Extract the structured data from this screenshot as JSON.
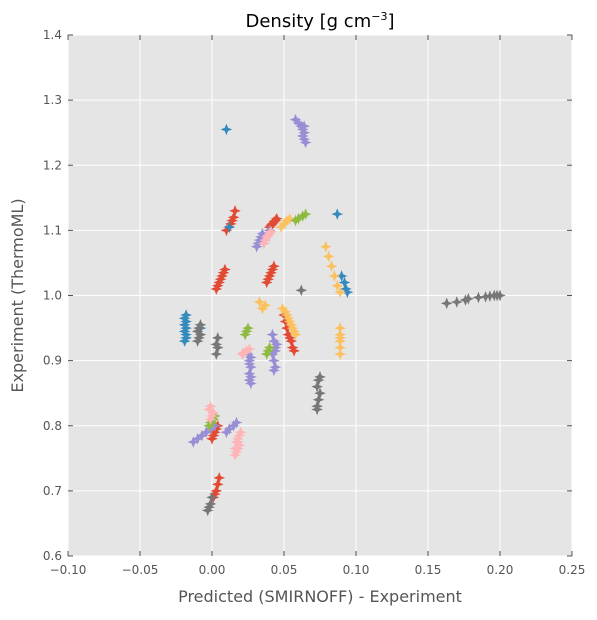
{
  "chart_data": {
    "type": "scatter",
    "title": "Density [g cm",
    "title_superscript": "−3",
    "title_suffix": "]",
    "xlabel": "Predicted (SMIRNOFF) - Experiment",
    "ylabel": "Experiment (ThermoML)",
    "xlim": [
      -0.1,
      0.25
    ],
    "ylim": [
      0.6,
      1.4
    ],
    "x_ticks": [
      -0.1,
      -0.05,
      0.0,
      0.05,
      0.1,
      0.15,
      0.2,
      0.25
    ],
    "x_tick_labels": [
      "−0.10",
      "−0.05",
      "0.00",
      "0.05",
      "0.10",
      "0.15",
      "0.20",
      "0.25"
    ],
    "y_ticks": [
      0.6,
      0.7,
      0.8,
      0.9,
      1.0,
      1.1,
      1.2,
      1.3,
      1.4
    ],
    "y_tick_labels": [
      "0.6",
      "0.7",
      "0.8",
      "0.9",
      "1.0",
      "1.1",
      "1.2",
      "1.3",
      "1.4"
    ],
    "grid": true,
    "marker": "4-point star",
    "colors": {
      "background": "#e5e5e5",
      "grid": "#ffffff",
      "red": "#e24a33",
      "blue": "#348abd",
      "purple": "#988ed5",
      "gray": "#777777",
      "yellow": "#fbc15e",
      "green": "#8eba42",
      "pink": "#ffb5b8"
    },
    "series": [
      {
        "color": "red",
        "x": [
          0.003,
          0.004,
          0.005,
          0.006,
          0.007,
          0.008,
          0.009,
          0.01,
          0.012,
          0.013,
          0.014,
          0.015,
          0.016,
          0.038,
          0.039,
          0.04,
          0.041,
          0.042,
          0.043,
          0.04,
          0.041,
          0.042,
          0.043,
          0.044,
          0.045,
          0.05,
          0.051,
          0.052,
          0.053,
          0.054,
          0.055,
          0.056,
          0.057,
          0.001,
          0.002,
          0.003,
          0.004,
          0.005,
          0.0,
          0.001,
          0.002,
          0.003,
          0.004
        ],
        "y": [
          1.01,
          1.015,
          1.02,
          1.025,
          1.03,
          1.035,
          1.04,
          1.1,
          1.105,
          1.11,
          1.115,
          1.12,
          1.13,
          1.02,
          1.025,
          1.03,
          1.035,
          1.04,
          1.045,
          1.105,
          1.108,
          1.11,
          1.113,
          1.115,
          1.118,
          0.97,
          0.96,
          0.95,
          0.94,
          0.935,
          0.93,
          0.92,
          0.915,
          0.69,
          0.695,
          0.7,
          0.71,
          0.72,
          0.78,
          0.785,
          0.79,
          0.795,
          0.8
        ]
      },
      {
        "color": "blue",
        "x": [
          -0.019,
          -0.018,
          -0.018,
          -0.019,
          -0.018,
          -0.019,
          -0.018,
          -0.019,
          -0.018,
          0.01,
          0.012,
          0.087,
          0.09,
          0.092,
          0.093,
          0.094,
          -0.008
        ],
        "y": [
          0.93,
          0.935,
          0.94,
          0.945,
          0.95,
          0.955,
          0.96,
          0.965,
          0.97,
          1.255,
          1.105,
          1.125,
          1.03,
          1.02,
          1.01,
          1.005,
          0.95
        ]
      },
      {
        "color": "purple",
        "x": [
          0.058,
          0.06,
          0.062,
          0.063,
          0.064,
          0.063,
          0.064,
          0.065,
          0.064,
          0.025,
          0.026,
          0.027,
          0.026,
          0.027,
          0.026,
          0.027,
          0.026,
          0.027,
          0.042,
          0.043,
          0.044,
          0.042,
          0.043,
          0.044,
          0.043,
          0.044,
          0.045,
          0.031,
          0.032,
          0.033,
          0.034,
          0.035,
          0.036,
          0.037,
          0.038,
          0.039,
          0.04,
          -0.013,
          -0.01,
          -0.007,
          -0.004,
          -0.001,
          0.002,
          0.01,
          0.012,
          0.015,
          0.017
        ],
        "y": [
          1.27,
          1.265,
          1.26,
          1.255,
          1.25,
          1.245,
          1.24,
          1.235,
          1.26,
          0.91,
          0.9,
          0.89,
          0.88,
          0.875,
          0.87,
          0.865,
          0.895,
          0.905,
          0.94,
          0.93,
          0.92,
          0.91,
          0.9,
          0.89,
          0.885,
          0.915,
          0.925,
          1.075,
          1.08,
          1.085,
          1.09,
          1.095,
          1.08,
          1.085,
          1.09,
          1.095,
          1.1,
          0.775,
          0.78,
          0.785,
          0.79,
          0.795,
          0.8,
          0.79,
          0.795,
          0.8,
          0.805
        ]
      },
      {
        "color": "gray",
        "x": [
          -0.01,
          -0.009,
          -0.008,
          -0.01,
          -0.009,
          -0.008,
          0.003,
          0.004,
          0.003,
          0.004,
          0.073,
          0.074,
          0.075,
          0.073,
          0.074,
          0.075,
          0.073,
          -0.003,
          -0.002,
          -0.001,
          0.0,
          0.163,
          0.17,
          0.176,
          0.178,
          0.185,
          0.19,
          0.193,
          0.196,
          0.198,
          0.2,
          0.062
        ],
        "y": [
          0.93,
          0.935,
          0.94,
          0.945,
          0.95,
          0.955,
          0.91,
          0.92,
          0.925,
          0.935,
          0.825,
          0.84,
          0.85,
          0.86,
          0.87,
          0.875,
          0.83,
          0.67,
          0.675,
          0.68,
          0.69,
          0.988,
          0.99,
          0.993,
          0.995,
          0.997,
          0.998,
          0.999,
          1.0,
          1.0,
          1.0,
          1.008
        ]
      },
      {
        "color": "yellow",
        "x": [
          0.079,
          0.081,
          0.083,
          0.085,
          0.087,
          0.089,
          0.089,
          0.089,
          0.089,
          0.089,
          0.089,
          0.089,
          0.049,
          0.051,
          0.052,
          0.053,
          0.054,
          0.055,
          0.056,
          0.057,
          0.058,
          0.048,
          0.05,
          0.052,
          0.054,
          0.035,
          0.037,
          0.033
        ],
        "y": [
          1.075,
          1.06,
          1.045,
          1.03,
          1.015,
          1.005,
          0.95,
          0.94,
          0.93,
          0.92,
          0.91,
          0.935,
          0.98,
          0.975,
          0.97,
          0.965,
          0.96,
          0.955,
          0.95,
          0.945,
          0.94,
          1.105,
          1.11,
          1.115,
          1.118,
          0.98,
          0.985,
          0.99
        ]
      },
      {
        "color": "green",
        "x": [
          0.058,
          0.06,
          0.063,
          0.065,
          0.023,
          0.024,
          0.025,
          0.038,
          0.039,
          0.04,
          0.0,
          0.001,
          0.002,
          -0.002,
          -0.001
        ],
        "y": [
          1.115,
          1.118,
          1.122,
          1.125,
          0.94,
          0.945,
          0.95,
          0.91,
          0.915,
          0.92,
          0.805,
          0.81,
          0.815,
          0.8,
          0.805
        ]
      },
      {
        "color": "pink",
        "x": [
          0.016,
          0.017,
          0.018,
          0.019,
          0.017,
          0.018,
          0.019,
          0.02,
          0.016,
          0.018,
          -0.001,
          0.0,
          0.001,
          -0.002,
          -0.001,
          0.021,
          0.022,
          0.024,
          0.026,
          0.036,
          0.037,
          0.038,
          0.039,
          0.04,
          0.041
        ],
        "y": [
          0.755,
          0.76,
          0.765,
          0.77,
          0.775,
          0.78,
          0.785,
          0.79,
          0.765,
          0.775,
          0.81,
          0.815,
          0.82,
          0.825,
          0.83,
          0.91,
          0.912,
          0.915,
          0.918,
          1.08,
          1.085,
          1.09,
          1.092,
          1.095,
          1.098
        ]
      }
    ]
  }
}
